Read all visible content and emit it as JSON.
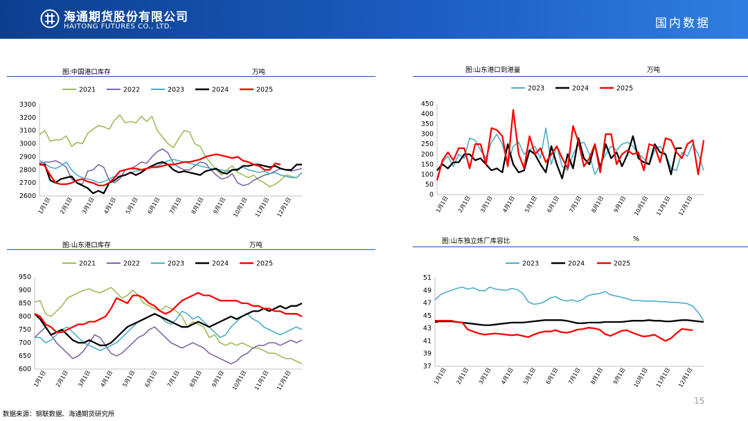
{
  "header": {
    "company_cn": "海通期货股份有限公司",
    "company_en": "HAITONG FUTURES CO., LTD.",
    "section_title": "国内数据"
  },
  "footer": {
    "source": "数据来源：钢联数据、海通期货研究所",
    "page_number": "15"
  },
  "colors": {
    "2021": "#9bbb59",
    "2022": "#8064a2",
    "2023": "#4bacc6",
    "2024": "#000000",
    "2025": "#ff0000"
  },
  "chart_data": [
    {
      "id": "port-inventory",
      "type": "line",
      "title": "图:中国港口库存",
      "unit": "万吨",
      "ylim": [
        2600,
        3300
      ],
      "yticks": [
        2600,
        2700,
        2800,
        2900,
        3000,
        3100,
        3200,
        3300
      ],
      "x_labels": [
        "1月1日",
        "2月1日",
        "3月1日",
        "4月1日",
        "5月1日",
        "6月1日",
        "7月1日",
        "8月1日",
        "9月1日",
        "10月1日",
        "11月1日",
        "12月1日"
      ],
      "x_count": 50,
      "series": [
        {
          "name": "2021",
          "values": [
            3070,
            3100,
            3020,
            3030,
            3030,
            3060,
            2980,
            3010,
            3000,
            3080,
            3110,
            3140,
            3130,
            3110,
            3180,
            3220,
            3160,
            3170,
            3160,
            3210,
            3170,
            3210,
            3100,
            3050,
            3000,
            2970,
            3040,
            3100,
            3090,
            3000,
            2980,
            2900,
            2850,
            2800,
            2760,
            2800,
            2830,
            2780,
            2760,
            2740,
            2760,
            2720,
            2700,
            2670,
            2690,
            2720,
            2760,
            2750,
            2740,
            2780
          ]
        },
        {
          "name": "2022",
          "values": [
            2850,
            2860,
            2860,
            2870,
            2850,
            2820,
            2730,
            2700,
            2690,
            2790,
            2800,
            2840,
            2820,
            2720,
            2700,
            2730,
            2800,
            2810,
            2830,
            2860,
            2850,
            2900,
            2940,
            2960,
            2930,
            2850,
            2820,
            2800,
            2800,
            2830,
            2860,
            2850,
            2800,
            2760,
            2730,
            2740,
            2770,
            2700,
            2680,
            2690,
            2720,
            2740,
            2760,
            2770,
            2790,
            2810,
            2800,
            2790,
            2800,
            2810
          ]
        },
        {
          "name": "2023",
          "values": [
            2870,
            2850,
            2820,
            2810,
            2830,
            2860,
            2800,
            2760,
            2740,
            2730,
            2720,
            2700,
            2710,
            2730,
            2750,
            2750,
            2760,
            2780,
            2790,
            2800,
            2810,
            2820,
            2830,
            2850,
            2870,
            2880,
            2870,
            2860,
            2850,
            2840,
            2830,
            2820,
            2810,
            2800,
            2800,
            2790,
            2800,
            2810,
            2820,
            2800,
            2790,
            2780,
            2790,
            2770,
            2780,
            2760,
            2750,
            2740,
            2740,
            2780
          ]
        },
        {
          "name": "2024",
          "values": [
            2840,
            2840,
            2720,
            2700,
            2730,
            2740,
            2750,
            2700,
            2680,
            2660,
            2620,
            2640,
            2620,
            2700,
            2720,
            2750,
            2760,
            2780,
            2760,
            2780,
            2810,
            2830,
            2850,
            2860,
            2840,
            2800,
            2780,
            2790,
            2780,
            2770,
            2760,
            2790,
            2800,
            2810,
            2780,
            2770,
            2800,
            2800,
            2830,
            2830,
            2840,
            2840,
            2830,
            2820,
            2830,
            2810,
            2800,
            2800,
            2840,
            2840
          ]
        },
        {
          "name": "2025",
          "values": [
            2850,
            2830,
            2760,
            2700,
            2690,
            2690,
            2700,
            2720,
            2730,
            2710,
            2700,
            2680,
            2680,
            2700,
            2740,
            2790,
            2800,
            2810,
            2810,
            2800,
            2810,
            2820,
            2820,
            2830,
            2840,
            2840,
            2850,
            2860,
            2860,
            2870,
            2880,
            2900,
            2910,
            2920,
            2910,
            2900,
            2890,
            2900,
            2870,
            2860,
            2840,
            2830,
            2800,
            2800,
            2850,
            2840
          ]
        }
      ]
    },
    {
      "id": "shandong-arrivals",
      "type": "line",
      "title": "图:山东港口到港量",
      "unit": "万吨",
      "ylim": [
        0,
        450
      ],
      "yticks": [
        0,
        50,
        100,
        150,
        200,
        250,
        300,
        350,
        400,
        450
      ],
      "x_labels": [
        "1月1日",
        "2月1日",
        "3月1日",
        "4月1日",
        "5月1日",
        "6月1日",
        "7月1日",
        "8月1日",
        "9月1日",
        "10月1日",
        "11月1日",
        "12月1日"
      ],
      "x_count": 50,
      "series": [
        {
          "name": "2023",
          "values": [
            120,
            160,
            190,
            140,
            200,
            180,
            280,
            270,
            220,
            180,
            260,
            300,
            250,
            150,
            240,
            260,
            200,
            220,
            240,
            180,
            330,
            150,
            240,
            140,
            120,
            200,
            250,
            260,
            200,
            100,
            150,
            200,
            240,
            220,
            250,
            260,
            240,
            200,
            180,
            150,
            220,
            240,
            200,
            130,
            120,
            210,
            190,
            250,
            200,
            120
          ]
        },
        {
          "name": "2024",
          "values": [
            120,
            150,
            130,
            160,
            160,
            200,
            200,
            170,
            180,
            150,
            120,
            130,
            110,
            250,
            150,
            110,
            120,
            220,
            200,
            150,
            110,
            240,
            150,
            80,
            200,
            130,
            280,
            180,
            150,
            250,
            130,
            250,
            180,
            210,
            140,
            200,
            290,
            180,
            160,
            150,
            250,
            210,
            200,
            100,
            230,
            230
          ]
        },
        {
          "name": "2025",
          "values": [
            70,
            170,
            210,
            170,
            230,
            230,
            130,
            250,
            250,
            150,
            330,
            320,
            290,
            140,
            420,
            200,
            130,
            290,
            200,
            230,
            160,
            200,
            240,
            180,
            130,
            340,
            260,
            140,
            180,
            250,
            110,
            300,
            300,
            150,
            200,
            220,
            200,
            210,
            120,
            250,
            240,
            160,
            280,
            270,
            210,
            180,
            250,
            270,
            100,
            270
          ]
        }
      ]
    },
    {
      "id": "shandong-port-inventory",
      "type": "line",
      "title": "图:山东港口库存",
      "unit": "万吨",
      "ylim": [
        600,
        950
      ],
      "yticks": [
        600,
        650,
        700,
        750,
        800,
        850,
        900,
        950
      ],
      "x_labels": [
        "1月1日",
        "2月1日",
        "3月1日",
        "4月1日",
        "5月1日",
        "6月1日",
        "7月1日",
        "8月1日",
        "9月1日",
        "10月1日",
        "11月1日",
        "12月1日"
      ],
      "x_count": 50,
      "series": [
        {
          "name": "2021",
          "values": [
            855,
            860,
            810,
            800,
            820,
            840,
            870,
            880,
            890,
            900,
            905,
            895,
            890,
            900,
            910,
            890,
            870,
            880,
            900,
            880,
            850,
            840,
            830,
            820,
            840,
            830,
            820,
            800,
            760,
            780,
            770,
            760,
            720,
            730,
            700,
            690,
            700,
            690,
            700,
            690,
            680,
            680,
            670,
            660,
            660,
            650,
            640,
            640,
            630,
            620
          ]
        },
        {
          "name": "2022",
          "values": [
            720,
            740,
            760,
            730,
            700,
            680,
            660,
            640,
            650,
            670,
            700,
            730,
            720,
            690,
            660,
            650,
            660,
            680,
            700,
            720,
            730,
            750,
            760,
            740,
            720,
            700,
            690,
            680,
            690,
            700,
            690,
            680,
            660,
            650,
            640,
            630,
            620,
            630,
            650,
            660,
            680,
            690,
            690,
            700,
            700,
            690,
            700,
            710,
            700,
            710
          ]
        },
        {
          "name": "2023",
          "values": [
            720,
            720,
            700,
            710,
            730,
            750,
            760,
            740,
            720,
            700,
            690,
            680,
            670,
            680,
            690,
            700,
            720,
            740,
            760,
            780,
            790,
            800,
            810,
            800,
            780,
            770,
            790,
            820,
            810,
            790,
            800,
            780,
            760,
            740,
            720,
            730,
            760,
            780,
            800,
            810,
            790,
            780,
            760,
            750,
            740,
            730,
            740,
            750,
            760,
            750
          ]
        },
        {
          "name": "2024",
          "values": [
            810,
            790,
            760,
            730,
            740,
            750,
            730,
            710,
            700,
            700,
            710,
            700,
            690,
            690,
            700,
            720,
            740,
            760,
            770,
            780,
            790,
            800,
            810,
            800,
            790,
            780,
            770,
            760,
            760,
            770,
            780,
            770,
            760,
            770,
            780,
            790,
            800,
            790,
            800,
            810,
            820,
            820,
            830,
            820,
            830,
            840,
            830,
            840,
            840,
            850
          ]
        },
        {
          "name": "2025",
          "values": [
            810,
            800,
            770,
            760,
            740,
            740,
            750,
            760,
            770,
            770,
            780,
            780,
            790,
            800,
            830,
            870,
            860,
            850,
            880,
            880,
            870,
            850,
            840,
            820,
            810,
            820,
            840,
            860,
            870,
            880,
            890,
            880,
            880,
            870,
            860,
            860,
            860,
            860,
            850,
            850,
            840,
            840,
            830,
            830,
            820,
            820,
            810,
            810,
            810,
            800
          ]
        }
      ]
    },
    {
      "id": "refinery-capacity-ratio",
      "type": "line",
      "title": "图:山东独立炼厂库容比",
      "unit": "%",
      "ylim": [
        37,
        51
      ],
      "yticks": [
        37,
        39,
        41,
        43,
        45,
        47,
        49,
        51
      ],
      "x_labels": [
        "1月1日",
        "2月1日",
        "3月1日",
        "4月1日",
        "5月1日",
        "6月1日",
        "7月1日",
        "8月1日",
        "9月1日",
        "10月1日",
        "11月1日",
        "12月1日"
      ],
      "x_count": 50,
      "series": [
        {
          "name": "2023",
          "values": [
            47.5,
            48.3,
            48.7,
            49.0,
            49.3,
            49.5,
            49.2,
            49.4,
            49.0,
            48.9,
            49.5,
            49.2,
            49.1,
            49.0,
            49.3,
            49.1,
            48.5,
            47.2,
            46.8,
            46.9,
            47.2,
            47.8,
            48.0,
            47.5,
            47.3,
            47.5,
            47.2,
            47.6,
            48.2,
            48.4,
            48.5,
            48.8,
            48.3,
            48.1,
            47.9,
            47.7,
            47.4,
            47.4,
            47.3,
            47.3,
            47.3,
            47.2,
            47.2,
            47.1,
            47.1,
            47.0,
            46.9,
            46.5,
            45.5,
            44.2
          ]
        },
        {
          "name": "2024",
          "values": [
            44.0,
            44.1,
            44.1,
            44.1,
            44.0,
            43.9,
            43.8,
            43.7,
            43.6,
            43.5,
            43.5,
            43.6,
            43.7,
            43.8,
            43.9,
            43.9,
            43.9,
            44.0,
            44.1,
            44.2,
            44.3,
            44.3,
            44.3,
            44.3,
            44.2,
            44.0,
            43.8,
            43.8,
            43.9,
            43.9,
            43.9,
            44.0,
            44.0,
            44.0,
            44.0,
            44.1,
            44.2,
            44.2,
            44.2,
            44.3,
            44.2,
            44.2,
            44.1,
            44.1,
            44.2,
            44.3,
            44.3,
            44.2,
            44.1,
            44.0
          ]
        },
        {
          "name": "2025",
          "values": [
            44.2,
            44.2,
            44.2,
            44.2,
            44.0,
            43.9,
            42.8,
            42.5,
            42.2,
            42.0,
            42.1,
            42.2,
            42.1,
            42.0,
            41.9,
            42.0,
            41.8,
            41.6,
            42.0,
            42.3,
            42.5,
            42.5,
            42.7,
            42.4,
            42.3,
            42.5,
            42.8,
            42.9,
            43.1,
            43.0,
            42.8,
            42.1,
            41.8,
            42.2,
            42.6,
            42.7,
            42.3,
            42.0,
            41.7,
            41.8,
            42.0,
            41.5,
            41.0,
            41.4,
            42.2,
            42.9,
            42.8,
            42.7
          ]
        }
      ]
    }
  ]
}
